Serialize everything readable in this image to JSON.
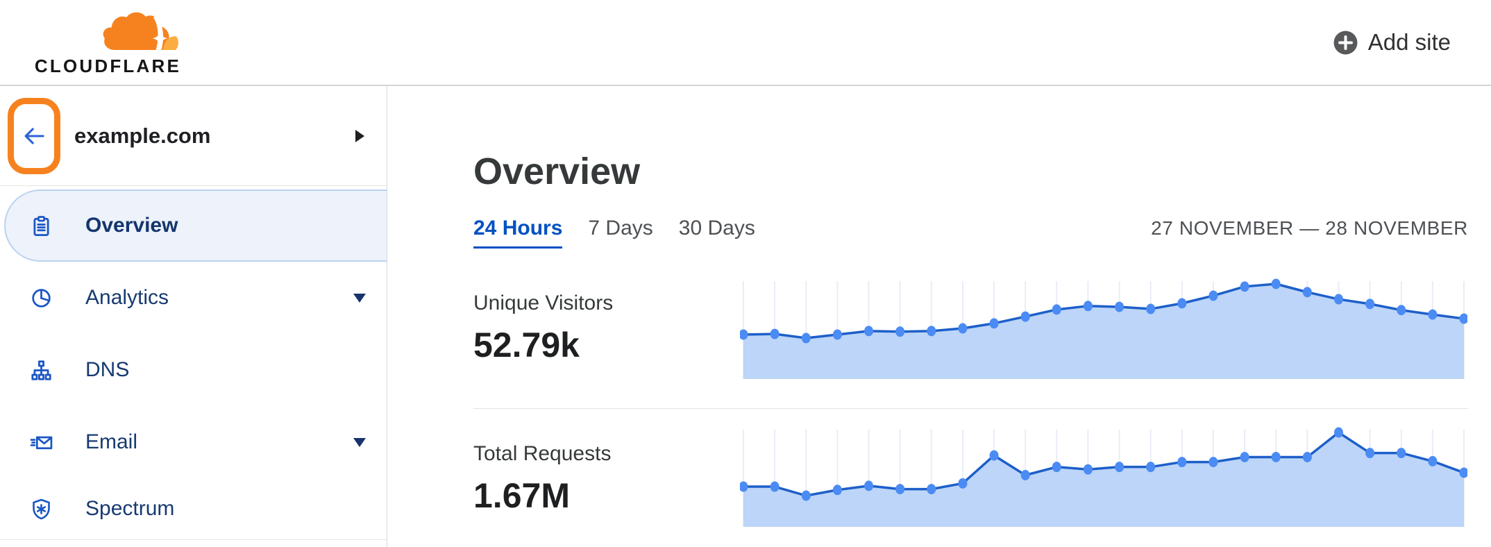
{
  "header": {
    "logo_text": "CLOUDFLARE",
    "add_site_label": "Add site"
  },
  "sidebar": {
    "site": {
      "name": "example.com"
    },
    "items": [
      {
        "label": "Overview",
        "icon": "clipboard",
        "selected": true,
        "expandable": false
      },
      {
        "label": "Analytics",
        "icon": "pie-chart",
        "selected": false,
        "expandable": true
      },
      {
        "label": "DNS",
        "icon": "network-tree",
        "selected": false,
        "expandable": false
      },
      {
        "label": "Email",
        "icon": "envelope",
        "selected": false,
        "expandable": true
      },
      {
        "label": "Spectrum",
        "icon": "shield",
        "selected": false,
        "expandable": false
      }
    ]
  },
  "main": {
    "title": "Overview",
    "tabs": [
      {
        "label": "24 Hours",
        "active": true
      },
      {
        "label": "7 Days",
        "active": false
      },
      {
        "label": "30 Days",
        "active": false
      }
    ],
    "date_range": "27 NOVEMBER — 28 NOVEMBER",
    "metrics": [
      {
        "label": "Unique Visitors",
        "value": "52.79k"
      },
      {
        "label": "Total Requests",
        "value": "1.67M"
      }
    ]
  },
  "annotation": {
    "type": "highlight-ring",
    "target": "back-button",
    "color": "#f6821f"
  },
  "colors": {
    "brand_orange": "#f6821f",
    "brand_orange_light": "#fbad41",
    "link_blue": "#0051c3",
    "nav_icon_blue": "#1b56c4",
    "nav_text_navy": "#173a70",
    "selected_item_bg": "#edf2fb",
    "selected_item_border": "#bcd2f0",
    "chart_fill": "#bcd5f8",
    "chart_line": "#1d5fc9",
    "chart_dot": "#4b8bf4",
    "chart_grid": "#e9edf6"
  },
  "chart_data": [
    {
      "type": "area",
      "title": "Unique Visitors",
      "total_displayed": "52.79k",
      "x_description": "24 hourly data points, 27 November — 28 November (no axis tick labels shown)",
      "unit": "thousand visitors per hour (estimated from relative point heights; sums to ~52.79k)",
      "values": [
        1.51,
        1.53,
        1.39,
        1.51,
        1.63,
        1.61,
        1.63,
        1.72,
        1.89,
        2.12,
        2.36,
        2.48,
        2.45,
        2.38,
        2.57,
        2.83,
        3.14,
        3.23,
        2.95,
        2.71,
        2.55,
        2.34,
        2.19,
        2.05
      ],
      "ylim": [
        0,
        3.23
      ],
      "grid": "vertical gridlines at each point, no axes, no legend",
      "legend": false
    },
    {
      "type": "area",
      "title": "Total Requests",
      "total_displayed": "1.67M",
      "x_description": "24 hourly data points, 27 November — 28 November (no axis tick labels shown)",
      "unit": "thousand requests per hour (estimated from relative point heights; sums to ~1.67M)",
      "values": [
        49,
        49,
        38,
        45,
        50,
        46,
        46,
        53,
        87,
        63,
        73,
        70,
        73,
        73,
        79,
        79,
        85,
        85,
        85,
        115,
        90,
        90,
        80,
        66
      ],
      "ylim": [
        0,
        115
      ],
      "grid": "vertical gridlines at each point, no axes, no legend",
      "legend": false
    }
  ]
}
